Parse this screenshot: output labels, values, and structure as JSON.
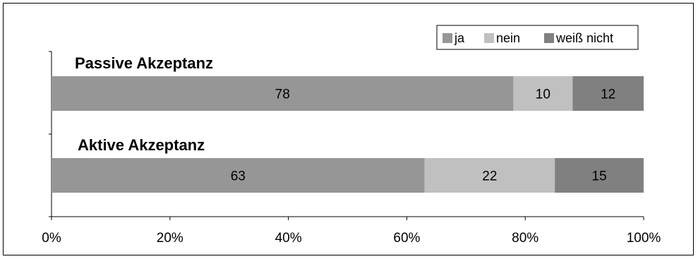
{
  "chart_data": {
    "type": "bar",
    "orientation": "horizontal",
    "stacked": true,
    "percent_stacked": true,
    "categories": [
      "Passive Akzeptanz",
      "Aktive Akzeptanz"
    ],
    "series": [
      {
        "name": "ja",
        "values": [
          78,
          63
        ],
        "color": "#969696"
      },
      {
        "name": "nein",
        "values": [
          10,
          22
        ],
        "color": "#c0c0c0"
      },
      {
        "name": "weiß nicht",
        "values": [
          12,
          15
        ],
        "color": "#808080"
      }
    ],
    "xlim": [
      0,
      100
    ],
    "x_ticks": [
      "0%",
      "20%",
      "40%",
      "60%",
      "80%",
      "100%"
    ],
    "legend": "top-right",
    "grid": false
  }
}
